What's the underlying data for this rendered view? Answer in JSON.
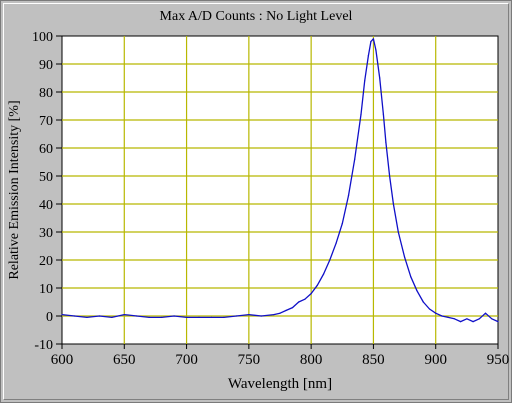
{
  "chart_data": {
    "type": "line",
    "title": "Max A/D Counts : No Light Level",
    "xlabel": "Wavelength [nm]",
    "ylabel": "Relative Emission Intensity [%]",
    "xlim": [
      600,
      950
    ],
    "ylim": [
      -10,
      100
    ],
    "xticks": [
      600,
      650,
      700,
      750,
      800,
      850,
      900,
      950
    ],
    "yticks": [
      -10,
      0,
      10,
      20,
      30,
      40,
      50,
      60,
      70,
      80,
      90,
      100
    ],
    "grid": true,
    "colors": {
      "line": "#1010c8",
      "grid": "#b8b800",
      "plot_bg": "#ffffff",
      "frame_bg": "#c0c0c0"
    },
    "series": [
      {
        "x": [
          600,
          610,
          620,
          630,
          640,
          650,
          660,
          670,
          680,
          690,
          700,
          710,
          720,
          730,
          740,
          750,
          760,
          770,
          775,
          780,
          785,
          790,
          795,
          800,
          805,
          810,
          815,
          820,
          825,
          830,
          835,
          840,
          843,
          846,
          848,
          850,
          852,
          855,
          858,
          860,
          863,
          866,
          870,
          875,
          880,
          885,
          890,
          895,
          900,
          905,
          910,
          915,
          920,
          925,
          930,
          935,
          940,
          945,
          950
        ],
        "y": [
          0.5,
          0,
          -0.5,
          0,
          -0.5,
          0.5,
          0,
          -0.5,
          -0.5,
          0,
          -0.5,
          -0.5,
          -0.5,
          -0.5,
          0,
          0.5,
          0,
          0.5,
          1,
          2,
          3,
          5,
          6,
          8,
          11,
          15,
          20,
          26,
          33,
          43,
          56,
          72,
          84,
          93,
          98,
          99,
          95,
          85,
          72,
          62,
          50,
          40,
          30,
          21,
          14,
          9,
          5,
          2.5,
          1,
          0,
          -0.5,
          -1,
          -2,
          -1,
          -2,
          -1,
          1,
          -1,
          -2
        ]
      }
    ]
  }
}
